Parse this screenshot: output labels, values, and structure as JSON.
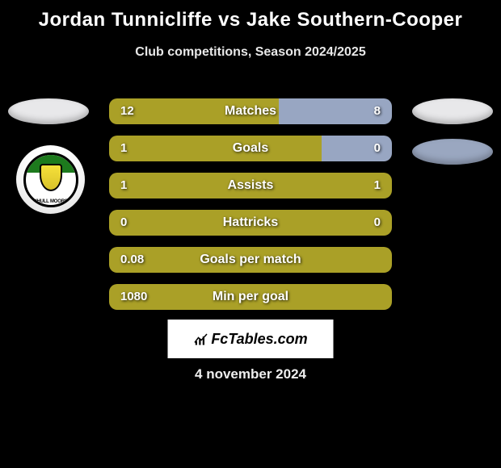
{
  "title": "Jordan Tunnicliffe vs Jake Southern-Cooper",
  "subtitle": "Club competitions, Season 2024/2025",
  "date": "4 november 2024",
  "logo_text": "FcTables.com",
  "colors": {
    "player1_bar": "#aaa027",
    "player2_bar": "#98a6c2",
    "ellipse_left": "#e8e8ea",
    "ellipse_right": "#9aa7c0",
    "background": "#000000",
    "text": "#ffffff"
  },
  "badge_text": "SOLIHULL MOORS FC",
  "stats": [
    {
      "label": "Matches",
      "left_value": "12",
      "right_value": "8",
      "left_bar_width_pct": 60,
      "right_bar_width_pct": 40,
      "left_color_key": "player1_bar",
      "right_color_key": "player2_bar"
    },
    {
      "label": "Goals",
      "left_value": "1",
      "right_value": "0",
      "left_bar_width_pct": 75,
      "right_bar_width_pct": 25,
      "left_color_key": "player1_bar",
      "right_color_key": "player2_bar"
    },
    {
      "label": "Assists",
      "left_value": "1",
      "right_value": "1",
      "left_bar_width_pct": 50,
      "right_bar_width_pct": 50,
      "left_color_key": "player1_bar",
      "right_color_key": "player1_bar"
    },
    {
      "label": "Hattricks",
      "left_value": "0",
      "right_value": "0",
      "full_bar": true,
      "full_color_key": "player1_bar"
    },
    {
      "label": "Goals per match",
      "left_value": "0.08",
      "right_value": "",
      "full_bar": true,
      "full_color_key": "player1_bar"
    },
    {
      "label": "Min per goal",
      "left_value": "1080",
      "right_value": "",
      "full_bar": true,
      "full_color_key": "player1_bar"
    }
  ]
}
